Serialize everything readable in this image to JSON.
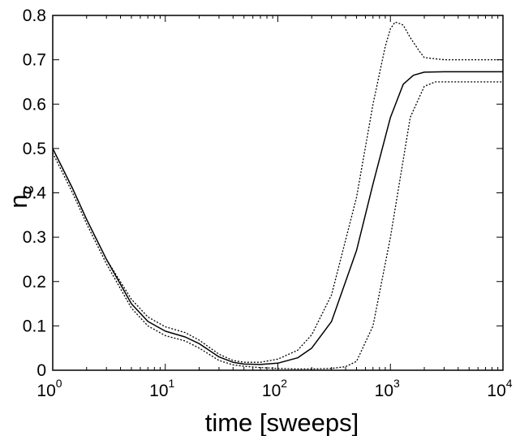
{
  "chart_data": {
    "type": "line",
    "title": "",
    "xlabel": "time [sweeps]",
    "ylabel_main": "n",
    "ylabel_sub": "c",
    "x_scale": "log",
    "xlim": [
      1,
      10000
    ],
    "ylim": [
      0,
      0.8
    ],
    "grid": false,
    "legend": "none",
    "x_ticks": [
      {
        "value": 1,
        "base": "10",
        "exp": "0"
      },
      {
        "value": 10,
        "base": "10",
        "exp": "1"
      },
      {
        "value": 100,
        "base": "10",
        "exp": "2"
      },
      {
        "value": 1000,
        "base": "10",
        "exp": "3"
      },
      {
        "value": 10000,
        "base": "10",
        "exp": "4"
      }
    ],
    "y_ticks": [
      {
        "value": 0,
        "label": "0"
      },
      {
        "value": 0.1,
        "label": "0.1"
      },
      {
        "value": 0.2,
        "label": "0.2"
      },
      {
        "value": 0.3,
        "label": "0.3"
      },
      {
        "value": 0.4,
        "label": "0.4"
      },
      {
        "value": 0.5,
        "label": "0.5"
      },
      {
        "value": 0.6,
        "label": "0.6"
      },
      {
        "value": 0.7,
        "label": "0.7"
      },
      {
        "value": 0.8,
        "label": "0.8"
      }
    ],
    "series": [
      {
        "style": "solid",
        "x": [
          1,
          1.5,
          2,
          3,
          5,
          7,
          10,
          15,
          20,
          30,
          40,
          50,
          70,
          100,
          150,
          200,
          300,
          500,
          700,
          1000,
          1300,
          1600,
          2000,
          3000,
          5000,
          10000
        ],
        "y": [
          0.5,
          0.41,
          0.34,
          0.25,
          0.15,
          0.11,
          0.088,
          0.075,
          0.06,
          0.03,
          0.018,
          0.014,
          0.013,
          0.016,
          0.028,
          0.05,
          0.11,
          0.27,
          0.42,
          0.57,
          0.645,
          0.665,
          0.672,
          0.673,
          0.673,
          0.673
        ]
      },
      {
        "style": "dotted",
        "x": [
          1,
          1.5,
          2,
          3,
          5,
          7,
          10,
          15,
          20,
          30,
          40,
          50,
          70,
          100,
          150,
          200,
          300,
          500,
          700,
          900,
          1000,
          1100,
          1200,
          1300,
          1500,
          1800,
          2000,
          3000,
          5000,
          10000
        ],
        "y": [
          0.5,
          0.41,
          0.34,
          0.25,
          0.16,
          0.12,
          0.098,
          0.085,
          0.068,
          0.036,
          0.022,
          0.018,
          0.018,
          0.025,
          0.045,
          0.08,
          0.17,
          0.39,
          0.6,
          0.73,
          0.77,
          0.785,
          0.782,
          0.778,
          0.75,
          0.72,
          0.705,
          0.7,
          0.7,
          0.7
        ]
      },
      {
        "style": "dotted",
        "x": [
          1,
          1.5,
          2,
          3,
          5,
          7,
          10,
          15,
          20,
          30,
          40,
          50,
          70,
          100,
          150,
          200,
          300,
          400,
          500,
          700,
          1000,
          1500,
          2000,
          2500,
          3000,
          5000,
          10000
        ],
        "y": [
          0.49,
          0.4,
          0.33,
          0.24,
          0.14,
          0.1,
          0.078,
          0.066,
          0.05,
          0.022,
          0.012,
          0.009,
          0.006,
          0.004,
          0.003,
          0.003,
          0.004,
          0.008,
          0.02,
          0.1,
          0.3,
          0.57,
          0.64,
          0.65,
          0.65,
          0.65,
          0.65
        ]
      }
    ]
  }
}
